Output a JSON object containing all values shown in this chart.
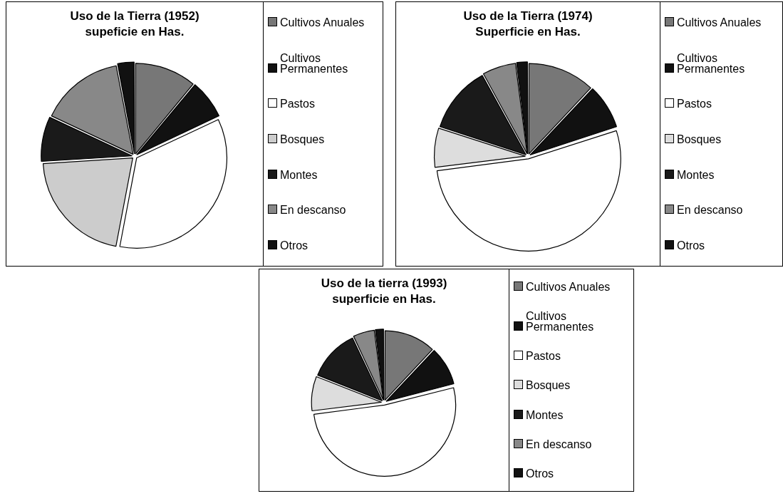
{
  "chart_data": [
    {
      "type": "pie",
      "title": "Uso de la Tierra (1952)",
      "subtitle": "supeficie en Has.",
      "categories": [
        "Cultivos Anuales",
        "Cultivos Permanentes",
        "Pastos",
        "Bosques",
        "Montes",
        "En descanso",
        "Otros"
      ],
      "values": [
        11,
        7,
        35,
        21,
        8,
        15,
        3
      ],
      "colors": [
        "#777777",
        "#111111",
        "#ffffff",
        "#cccccc",
        "#1a1a1a",
        "#888888",
        "#111111"
      ],
      "legend": "right"
    },
    {
      "type": "pie",
      "title": "Uso de la Tierra (1974)",
      "subtitle": "Superficie en Has.",
      "categories": [
        "Cultivos Anuales",
        "Cultivos Permanentes",
        "Pastos",
        "Bosques",
        "Montes",
        "En descanso",
        "Otros"
      ],
      "values": [
        12,
        8,
        53,
        7,
        12,
        6,
        2
      ],
      "colors": [
        "#777777",
        "#111111",
        "#ffffff",
        "#dddddd",
        "#1a1a1a",
        "#888888",
        "#111111"
      ],
      "legend": "right"
    },
    {
      "type": "pie",
      "title": "Uso de la tierra (1993)",
      "subtitle": "superficie en Has.",
      "categories": [
        "Cultivos Anuales",
        "Cultivos Permanentes",
        "Pastos",
        "Bosques",
        "Montes",
        "En descanso",
        "Otros"
      ],
      "values": [
        12,
        9,
        52,
        8,
        12,
        5,
        2
      ],
      "colors": [
        "#777777",
        "#111111",
        "#ffffff",
        "#dddddd",
        "#1a1a1a",
        "#888888",
        "#111111"
      ],
      "legend": "right"
    }
  ]
}
